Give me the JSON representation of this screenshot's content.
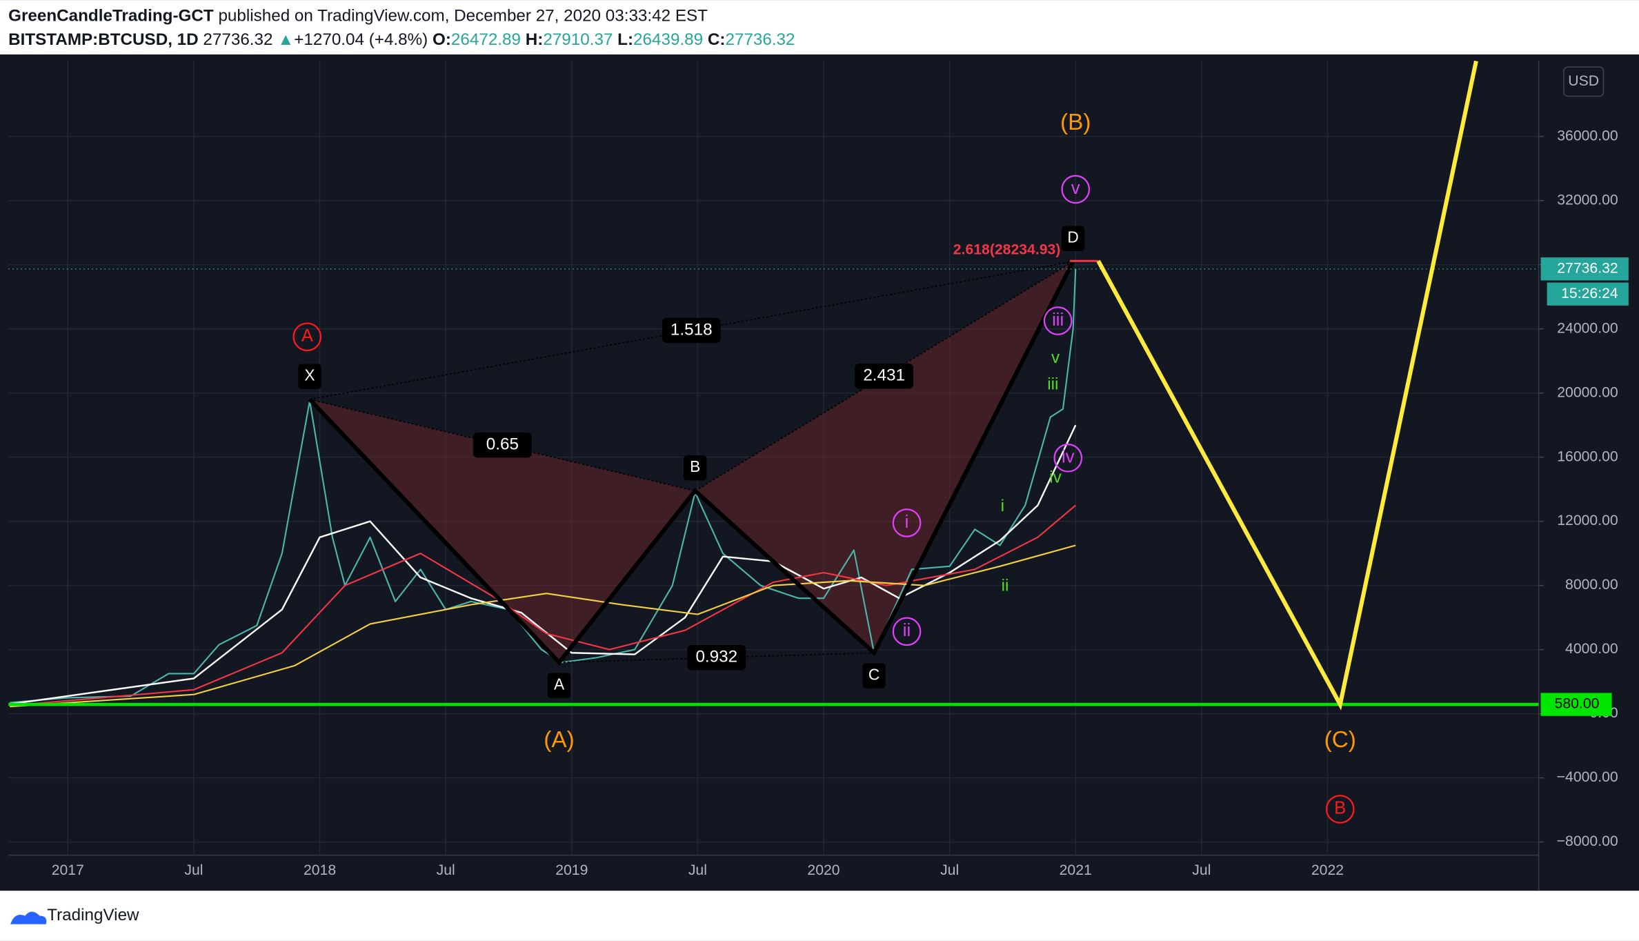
{
  "header": {
    "author": "GreenCandleTrading-GCT",
    "published": "published on TradingView.com, December 27, 2020 03:33:42 EST",
    "symbol": "BITSTAMP:BTCUSD, 1D",
    "last": "27736.32",
    "arrow": "▲",
    "change": "+1270.04 (+4.8%)",
    "ohlc": [
      {
        "key": "O:",
        "value": "26472.89"
      },
      {
        "key": "H:",
        "value": "27910.37"
      },
      {
        "key": "L:",
        "value": "26439.89"
      },
      {
        "key": "C:",
        "value": "27736.32"
      }
    ]
  },
  "currency": "USD",
  "footer": "TradingView",
  "chart_data": {
    "type": "line",
    "xlim": [
      2016.764,
      2022.838
    ],
    "ylim": [
      -8820,
      40720
    ],
    "grid": true,
    "xticks": [
      {
        "value": 2017,
        "label": "2017"
      },
      {
        "value": 2017.5,
        "label": "Jul"
      },
      {
        "value": 2018,
        "label": "2018"
      },
      {
        "value": 2018.5,
        "label": "Jul"
      },
      {
        "value": 2019,
        "label": "2019"
      },
      {
        "value": 2019.5,
        "label": "Jul"
      },
      {
        "value": 2020,
        "label": "2020"
      },
      {
        "value": 2020.5,
        "label": "Jul"
      },
      {
        "value": 2021,
        "label": "2021"
      },
      {
        "value": 2021.5,
        "label": "Jul"
      },
      {
        "value": 2022,
        "label": "2022"
      }
    ],
    "yticks": [
      {
        "value": -8000,
        "label": "−8000.00"
      },
      {
        "value": -4000,
        "label": "−4000.00"
      },
      {
        "value": 0,
        "label": "0.00"
      },
      {
        "value": 4000,
        "label": "4000.00"
      },
      {
        "value": 8000,
        "label": "8000.00"
      },
      {
        "value": 12000,
        "label": "12000.00"
      },
      {
        "value": 16000,
        "label": "16000.00"
      },
      {
        "value": 20000,
        "label": "20000.00"
      },
      {
        "value": 24000,
        "label": "24000.00"
      },
      {
        "value": 28000,
        "label": "28000.00"
      },
      {
        "value": 32000,
        "label": "32000.00"
      },
      {
        "value": 36000,
        "label": "36000.00"
      }
    ],
    "series": [
      {
        "name": "BTCUSD",
        "color": "#4db6ac",
        "width": 1.4,
        "x": [
          2016.77,
          2017.0,
          2017.25,
          2017.4,
          2017.5,
          2017.6,
          2017.75,
          2017.85,
          2017.96,
          2018.05,
          2018.1,
          2018.2,
          2018.3,
          2018.4,
          2018.5,
          2018.6,
          2018.75,
          2018.88,
          2018.96,
          2019.1,
          2019.25,
          2019.4,
          2019.49,
          2019.6,
          2019.75,
          2019.9,
          2020.0,
          2020.12,
          2020.2,
          2020.35,
          2020.5,
          2020.6,
          2020.7,
          2020.8,
          2020.9,
          2020.95,
          2020.99,
          2021.0
        ],
        "values": [
          700,
          1000,
          1100,
          2500,
          2500,
          4300,
          5500,
          10000,
          19500,
          11000,
          8000,
          11000,
          7000,
          9000,
          6500,
          7000,
          6500,
          4000,
          3200,
          3500,
          4000,
          8000,
          13800,
          10000,
          8000,
          7200,
          7200,
          10200,
          3800,
          9000,
          9200,
          11500,
          10500,
          13000,
          18500,
          19000,
          24000,
          27736
        ]
      },
      {
        "name": "MA white",
        "color": "#ffffff",
        "width": 1.6,
        "x": [
          2016.77,
          2017.5,
          2017.85,
          2018.0,
          2018.2,
          2018.4,
          2018.6,
          2018.8,
          2019.0,
          2019.25,
          2019.45,
          2019.6,
          2019.8,
          2020.0,
          2020.15,
          2020.3,
          2020.5,
          2020.7,
          2020.85,
          2021.0
        ],
        "values": [
          600,
          2200,
          6500,
          11000,
          12000,
          8500,
          7200,
          6300,
          3800,
          3700,
          6000,
          9800,
          9500,
          7800,
          8500,
          7200,
          8800,
          10800,
          13000,
          18000
        ]
      },
      {
        "name": "MA red",
        "color": "#f23645",
        "width": 1.4,
        "x": [
          2016.77,
          2017.5,
          2017.85,
          2018.1,
          2018.4,
          2018.7,
          2018.9,
          2019.15,
          2019.45,
          2019.8,
          2020.0,
          2020.25,
          2020.6,
          2020.85,
          2021.0
        ],
        "values": [
          500,
          1500,
          3800,
          8000,
          10000,
          7200,
          5000,
          4000,
          5200,
          8200,
          8800,
          8000,
          9000,
          11000,
          13000
        ]
      },
      {
        "name": "MA yellow",
        "color": "#f5d142",
        "width": 1.4,
        "x": [
          2016.77,
          2017.5,
          2017.9,
          2018.2,
          2018.6,
          2018.9,
          2019.2,
          2019.5,
          2019.8,
          2020.1,
          2020.4,
          2020.7,
          2021.0
        ],
        "values": [
          450,
          1200,
          3000,
          5600,
          6800,
          7500,
          6800,
          6200,
          8000,
          8300,
          8000,
          9200,
          10500
        ]
      }
    ],
    "pattern": {
      "points": [
        {
          "label": "X",
          "x": 2017.96,
          "y": 19600
        },
        {
          "label": "A",
          "x": 2018.95,
          "y": 3200
        },
        {
          "label": "B",
          "x": 2019.49,
          "y": 13900
        },
        {
          "label": "C",
          "x": 2020.2,
          "y": 3800
        },
        {
          "label": "D",
          "x": 2020.99,
          "y": 28200
        }
      ],
      "ratios": [
        {
          "value": 0.65,
          "from": "X",
          "to": "B"
        },
        {
          "value": 1.518,
          "from": "X",
          "to": "D"
        },
        {
          "value": 2.431,
          "from": "B",
          "to": "D"
        },
        {
          "value": 0.932,
          "from": "A",
          "to": "C"
        }
      ],
      "fib_label": "2.618(28234.93)",
      "fib_level": 28234.93
    },
    "projection": {
      "color": "#ffeb3b",
      "x": [
        2021.09,
        2022.05,
        2022.59
      ],
      "values": [
        28234.93,
        580,
        40700
      ]
    },
    "support": {
      "value": 580,
      "label": "580.00",
      "color": "#00e600"
    },
    "last_price": {
      "value": 27736.32,
      "label": "27736.32",
      "countdown": "15:26:24"
    },
    "waves": [
      {
        "text": "(B)",
        "x": 2021.0,
        "y": 36800,
        "color": "#ff9800",
        "circled": false
      },
      {
        "text": "(A)",
        "x": 2018.95,
        "y": -1700,
        "color": "#ff9800",
        "circled": false
      },
      {
        "text": "(C)",
        "x": 2022.05,
        "y": -1700,
        "color": "#ff9800",
        "circled": false
      },
      {
        "text": "A",
        "x": 2017.95,
        "y": 23500,
        "color": "#ff1a1a",
        "circled": true
      },
      {
        "text": "B",
        "x": 2022.05,
        "y": -5950,
        "color": "#ff1a1a",
        "circled": true
      },
      {
        "text": "v",
        "x": 2021.0,
        "y": 32700,
        "color": "#e040fb",
        "circled": true
      },
      {
        "text": "iii",
        "x": 2020.93,
        "y": 24500,
        "color": "#e040fb",
        "circled": true
      },
      {
        "text": "iv",
        "x": 2020.97,
        "y": 15950,
        "color": "#e040fb",
        "circled": true
      },
      {
        "text": "ii",
        "x": 2020.33,
        "y": 5130,
        "color": "#e040fb",
        "circled": true
      },
      {
        "text": "i",
        "x": 2020.33,
        "y": 11900,
        "color": "#e040fb",
        "circled": true
      },
      {
        "text": "v",
        "x": 2020.92,
        "y": 22150,
        "color": "#55dd22",
        "circled": false
      },
      {
        "text": "iii",
        "x": 2020.91,
        "y": 20500,
        "color": "#55dd22",
        "circled": false
      },
      {
        "text": "iv",
        "x": 2020.92,
        "y": 14700,
        "color": "#55dd22",
        "circled": false
      },
      {
        "text": "i",
        "x": 2020.71,
        "y": 12900,
        "color": "#55dd22",
        "circled": false
      },
      {
        "text": "ii",
        "x": 2020.72,
        "y": 7930,
        "color": "#55dd22",
        "circled": false
      }
    ]
  }
}
